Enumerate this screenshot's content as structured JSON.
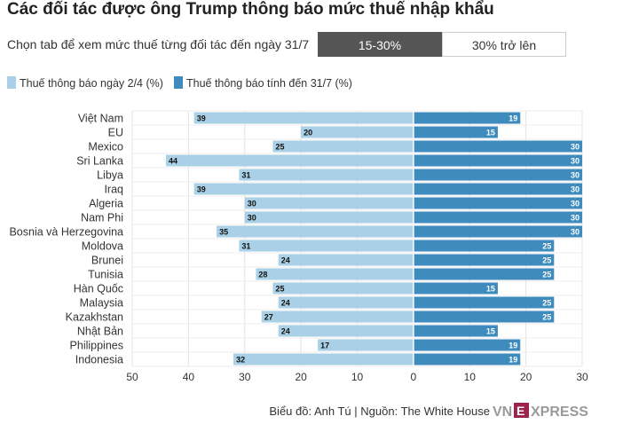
{
  "title": "Các đối tác được ông Trump thông báo mức thuế nhập khẩu",
  "tabs": {
    "prompt": "Chọn tab để xem mức thuế từng đối tác đến ngày 31/7",
    "items": [
      {
        "label": "15-30%",
        "active": true
      },
      {
        "label": "30% trở lên",
        "active": false
      }
    ]
  },
  "colors": {
    "series_left": "#a9d0e6",
    "series_right": "#3f8bbd",
    "grid": "#e3e3e3",
    "tab_active_bg": "#555555"
  },
  "chart_data": {
    "type": "bar",
    "orientation": "horizontal-diverging",
    "categories": [
      "Việt Nam",
      "EU",
      "Mexico",
      "Sri Lanka",
      "Libya",
      "Iraq",
      "Algeria",
      "Nam Phi",
      "Bosnia và Herzegovina",
      "Moldova",
      "Brunei",
      "Tunisia",
      "Hàn Quốc",
      "Malaysia",
      "Kazakhstan",
      "Nhật Bản",
      "Philippines",
      "Indonesia"
    ],
    "series": [
      {
        "name": "Thuế thông báo ngày 2/4 (%)",
        "values": [
          39,
          20,
          25,
          44,
          31,
          39,
          30,
          30,
          35,
          31,
          24,
          28,
          25,
          24,
          27,
          24,
          17,
          32
        ]
      },
      {
        "name": "Thuế thông báo tính đến 31/7 (%)",
        "values": [
          19,
          15,
          30,
          30,
          30,
          30,
          30,
          30,
          30,
          25,
          25,
          25,
          15,
          25,
          25,
          15,
          19,
          19
        ]
      }
    ],
    "xlim": [
      -50,
      30
    ],
    "xticks": [
      -50,
      -40,
      -30,
      -20,
      -10,
      0,
      10,
      20,
      30
    ],
    "xtick_labels": [
      "50",
      "40",
      "30",
      "20",
      "10",
      "0",
      "10",
      "20",
      "30"
    ],
    "grid": true,
    "legend": "top-left"
  },
  "footer": {
    "credit": "Biểu đồ: Anh Tú | Nguồn: The White House",
    "logo_left": "VN",
    "logo_right": "XPRESS"
  }
}
